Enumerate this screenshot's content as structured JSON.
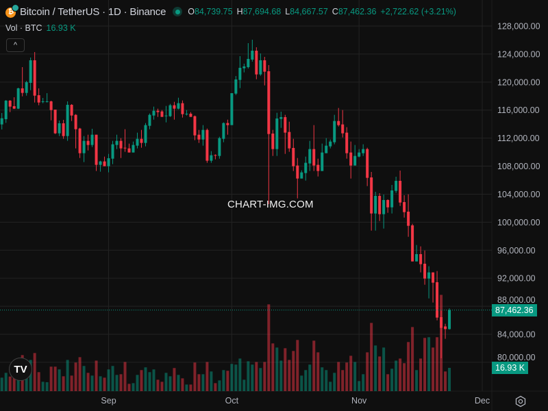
{
  "header": {
    "symbol_title": "Bitcoin / TetherUS · 1D · Binance",
    "open_label": "O",
    "open": "84,739.75",
    "high_label": "H",
    "high": "87,694.68",
    "low_label": "L",
    "low": "84,667.57",
    "close_label": "C",
    "close": "87,462.36",
    "change": "+2,722.62 (+3.21%)",
    "icon": "bitcoin-coin-icon"
  },
  "volume_legend": {
    "label": "Vol · BTC",
    "value": "16.93 K"
  },
  "collapse_icon": "^",
  "watermark": "CHART-IMG.COM",
  "logo": "TV",
  "price_tag": "87,462.36",
  "volume_tag": "16.93 K",
  "colors": {
    "up": "#089981",
    "down": "#f23645",
    "background": "#0f0f0f",
    "grid": "#232323"
  },
  "chart_data": {
    "type": "candlestick",
    "title": "Bitcoin / TetherUS · 1D · Binance",
    "grid": true,
    "ylim": [
      78500,
      129000
    ],
    "y_ticks": [
      80000,
      84000,
      88000,
      92000,
      96000,
      100000,
      104000,
      108000,
      112000,
      116000,
      120000,
      124000,
      128000
    ],
    "x_ticks": [
      "Sep",
      "Oct",
      "Nov",
      "Dec"
    ],
    "volume_unit": "K BTC",
    "candles_fields": [
      "open",
      "high",
      "low",
      "close",
      "volume_k"
    ],
    "candles": [
      [
        113954,
        115583,
        113237,
        114834,
        9.8
      ],
      [
        114703,
        117441,
        114182,
        117343,
        13.3
      ],
      [
        117343,
        117441,
        115714,
        116496,
        10.6
      ],
      [
        116561,
        117832,
        116150,
        116202,
        13.3
      ],
      [
        116202,
        119201,
        116150,
        119103,
        17.3
      ],
      [
        119103,
        122134,
        117962,
        118451,
        26.2
      ],
      [
        118451,
        120178,
        118060,
        119983,
        20.3
      ],
      [
        119885,
        123503,
        118842,
        123111,
        22.7
      ],
      [
        123111,
        124285,
        117082,
        118060,
        27.7
      ],
      [
        118125,
        119103,
        116691,
        117082,
        13.8
      ],
      [
        117147,
        117734,
        116985,
        117245,
        6.8
      ],
      [
        117147,
        118418,
        117082,
        117245,
        6.5
      ],
      [
        117245,
        117343,
        114540,
        116007,
        17.8
      ],
      [
        116072,
        116072,
        112585,
        112683,
        17.8
      ],
      [
        112683,
        114508,
        112292,
        114117,
        15.8
      ],
      [
        114117,
        114605,
        111900,
        112292,
        10.8
      ],
      [
        112292,
        117245,
        111607,
        116756,
        22.7
      ],
      [
        116756,
        116854,
        114442,
        115225,
        11.3
      ],
      [
        115322,
        115420,
        110532,
        113269,
        20.8
      ],
      [
        113367,
        113465,
        109163,
        109847,
        24.7
      ],
      [
        109847,
        112292,
        108576,
        111607,
        18.3
      ],
      [
        111607,
        112487,
        110238,
        111021,
        13.3
      ],
      [
        111021,
        113334,
        110727,
        112487,
        11.3
      ],
      [
        112487,
        112487,
        107305,
        108185,
        22.2
      ],
      [
        108185,
        108772,
        107208,
        108674,
        10.8
      ],
      [
        108674,
        109358,
        107990,
        107990,
        9.8
      ],
      [
        107990,
        109750,
        107110,
        109130,
        15.8
      ],
      [
        109065,
        111607,
        108283,
        111118,
        18.3
      ],
      [
        111021,
        112487,
        110434,
        111607,
        11.8
      ],
      [
        111607,
        111998,
        109163,
        110532,
        12.3
      ],
      [
        110629,
        113269,
        110043,
        110532,
        21.2
      ],
      [
        110532,
        111216,
        109945,
        109945,
        5.3
      ],
      [
        109945,
        111509,
        109945,
        111021,
        5.8
      ],
      [
        110923,
        112780,
        110532,
        111900,
        11.8
      ],
      [
        111900,
        113171,
        110629,
        111314,
        15.3
      ],
      [
        111314,
        114149,
        110825,
        113856,
        17.3
      ],
      [
        113758,
        115518,
        113269,
        115322,
        13.8
      ],
      [
        115225,
        116496,
        114638,
        115909,
        15.8
      ],
      [
        115909,
        116202,
        115029,
        115714,
        8.3
      ],
      [
        115811,
        116007,
        115029,
        115029,
        6.8
      ],
      [
        115127,
        116593,
        114247,
        115225,
        13.3
      ],
      [
        115127,
        116887,
        115029,
        116691,
        10.8
      ],
      [
        116691,
        117180,
        114638,
        116202,
        16.8
      ],
      [
        116202,
        117767,
        116105,
        116985,
        11.8
      ],
      [
        116985,
        117376,
        114931,
        115420,
        9.3
      ],
      [
        115388,
        116007,
        115225,
        115485,
        4.8
      ],
      [
        115485,
        115714,
        115029,
        115029,
        4.8
      ],
      [
        115127,
        115225,
        111705,
        112389,
        20.8
      ],
      [
        112487,
        113171,
        111314,
        111803,
        12.3
      ],
      [
        111803,
        113856,
        110923,
        113171,
        12.3
      ],
      [
        113171,
        113367,
        108479,
        108772,
        21.2
      ],
      [
        108772,
        110141,
        108479,
        109554,
        14.3
      ],
      [
        109587,
        109684,
        108967,
        109522,
        5.8
      ],
      [
        109456,
        112194,
        109065,
        111998,
        7.8
      ],
      [
        111900,
        114247,
        111412,
        114149,
        15.3
      ],
      [
        114149,
        114638,
        112487,
        113856,
        14.8
      ],
      [
        113856,
        118418,
        113856,
        118418,
        19.8
      ],
      [
        118353,
        120863,
        118158,
        120374,
        19.3
      ],
      [
        120309,
        123698,
        119136,
        122036,
        23.7
      ],
      [
        121971,
        122623,
        121384,
        122232,
        8.3
      ],
      [
        122134,
        125556,
        121938,
        123307,
        21.7
      ],
      [
        123209,
        126045,
        122916,
        124480,
        19.3
      ],
      [
        124480,
        124969,
        120407,
        121091,
        21.2
      ],
      [
        121091,
        124089,
        120895,
        123112,
        16.8
      ],
      [
        123112,
        123600,
        119527,
        121482,
        21.2
      ],
      [
        121547,
        122427,
        102580,
        112585,
        63.1
      ],
      [
        112650,
        113172,
        109456,
        110434,
        34.7
      ],
      [
        110434,
        115616,
        109456,
        114801,
        31.7
      ],
      [
        114736,
        115779,
        113465,
        114997,
        22.2
      ],
      [
        114997,
        115323,
        109750,
        112781,
        31.2
      ],
      [
        112878,
        114345,
        110043,
        110532,
        22.7
      ],
      [
        110597,
        111901,
        107305,
        107990,
        29.2
      ],
      [
        108088,
        109163,
        103395,
        106230,
        37.2
      ],
      [
        106230,
        107403,
        106230,
        107110,
        11.3
      ],
      [
        107012,
        109359,
        105937,
        108479,
        15.3
      ],
      [
        108381,
        111607,
        107305,
        110434,
        19.3
      ],
      [
        110434,
        113856,
        107305,
        108088,
        36.7
      ],
      [
        108185,
        109065,
        106523,
        107305,
        28.2
      ],
      [
        107305,
        111216,
        107305,
        109945,
        17.3
      ],
      [
        109847,
        111998,
        109847,
        110923,
        15.3
      ],
      [
        110825,
        111803,
        110532,
        111510,
        6.8
      ],
      [
        111412,
        115323,
        111118,
        114443,
        13.3
      ],
      [
        114443,
        116300,
        113660,
        113856,
        21.2
      ],
      [
        113954,
        116007,
        112096,
        112683,
        15.3
      ],
      [
        112781,
        113563,
        109065,
        109847,
        20.8
      ],
      [
        109945,
        111510,
        106230,
        108088,
        25.7
      ],
      [
        108088,
        111021,
        108088,
        109456,
        21.2
      ],
      [
        109359,
        110434,
        109261,
        109945,
        7.3
      ],
      [
        109847,
        111118,
        109456,
        110434,
        12.3
      ],
      [
        110434,
        110630,
        105154,
        106328,
        28.2
      ],
      [
        106390,
        107173,
        98797,
        101241,
        49.6
      ],
      [
        101241,
        104337,
        98797,
        103751,
        33.2
      ],
      [
        103751,
        104142,
        100166,
        101143,
        25.2
      ],
      [
        101143,
        103946,
        99090,
        103164,
        31.7
      ],
      [
        103164,
        103262,
        101339,
        102121,
        12.3
      ],
      [
        102121,
        105315,
        101241,
        104533,
        16.3
      ],
      [
        104468,
        106488,
        104174,
        105902,
        22.2
      ],
      [
        105902,
        107368,
        102317,
        102805,
        23.7
      ],
      [
        102871,
        103848,
        100655,
        101437,
        20.3
      ],
      [
        101502,
        103979,
        97917,
        99481,
        35.7
      ],
      [
        99546,
        99775,
        94397,
        94397,
        46.6
      ],
      [
        94397,
        96744,
        94397,
        95440,
        15.3
      ],
      [
        95440,
        96548,
        92833,
        94006,
        23.7
      ],
      [
        94071,
        95962,
        91073,
        91953,
        38.7
      ],
      [
        91953,
        93713,
        89118,
        92833,
        39.2
      ],
      [
        92833,
        92833,
        88531,
        91366,
        31.7
      ],
      [
        91432,
        93028,
        85989,
        86380,
        39.2
      ],
      [
        86445,
        87390,
        80580,
        84914,
        70.0
      ],
      [
        85120,
        85500,
        83349,
        84740,
        14.3
      ],
      [
        84739.75,
        87694.68,
        84667.57,
        87462.36,
        16.93
      ]
    ]
  }
}
